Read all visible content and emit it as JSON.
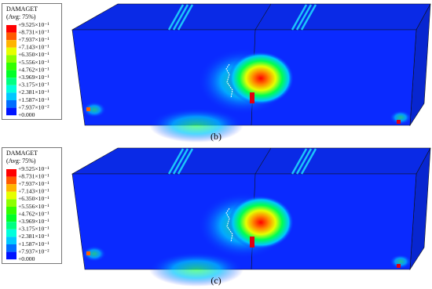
{
  "panels": [
    {
      "legend": {
        "title": "DAMAGET",
        "subtitle": "(Avg: 75%)",
        "labels": [
          "+9.525×10⁻¹",
          "+8.731×10⁻¹",
          "+7.937×10⁻¹",
          "+7.143×10⁻¹",
          "+6.350×10⁻¹",
          "+5.556×10⁻¹",
          "+4.762×10⁻¹",
          "+3.969×10⁻¹",
          "+3.175×10⁻¹",
          "+2.381×10⁻¹",
          "+1.587×10⁻¹",
          "+7.937×10⁻²",
          "+0.000"
        ],
        "colors": [
          "#ff0000",
          "#ff5a00",
          "#ffb400",
          "#e6ff00",
          "#8cff00",
          "#32ff00",
          "#00ff28",
          "#00ff82",
          "#00ffdc",
          "#00c8ff",
          "#006eff",
          "#0014ff"
        ]
      },
      "caption": "(b)"
    },
    {
      "legend": {
        "title": "DAMAGET",
        "subtitle": "(Avg: 75%)",
        "labels": [
          "+9.525×10⁻¹",
          "+8.731×10⁻¹",
          "+7.937×10⁻¹",
          "+7.143×10⁻¹",
          "+6.350×10⁻¹",
          "+5.556×10⁻¹",
          "+4.762×10⁻¹",
          "+3.969×10⁻¹",
          "+3.175×10⁻¹",
          "+2.381×10⁻¹",
          "+1.587×10⁻¹",
          "+7.937×10⁻²",
          "+0.000"
        ],
        "colors": [
          "#ff0000",
          "#ff5a00",
          "#ffb400",
          "#e6ff00",
          "#8cff00",
          "#32ff00",
          "#00ff28",
          "#00ff82",
          "#00ffdc",
          "#00c8ff",
          "#006eff",
          "#0014ff"
        ]
      },
      "caption": "(c)"
    }
  ]
}
